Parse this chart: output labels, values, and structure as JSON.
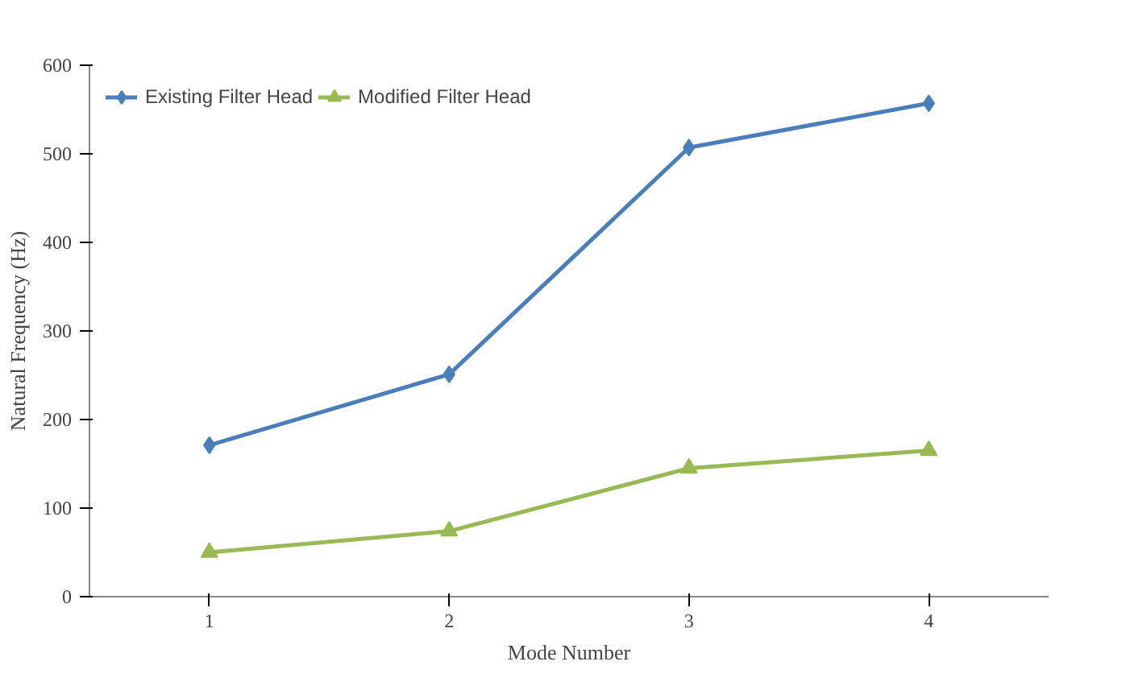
{
  "chart_data": {
    "type": "line",
    "xlabel": "Mode Number",
    "ylabel": "Natural Frequency (Hz)",
    "categories": [
      "1",
      "2",
      "3",
      "4"
    ],
    "series": [
      {
        "name": "Existing Filter Head",
        "color": "#4a7ebb",
        "marker": "diamond",
        "values": [
          171,
          251,
          507,
          557
        ]
      },
      {
        "name": "Modified Filter Head",
        "color": "#98b954",
        "marker": "triangle",
        "values": [
          50,
          74,
          145,
          165
        ]
      }
    ],
    "ylim": [
      0,
      600
    ],
    "yticks": [
      0,
      100,
      200,
      300,
      400,
      500,
      600
    ],
    "grid": false,
    "legend": "top left"
  }
}
